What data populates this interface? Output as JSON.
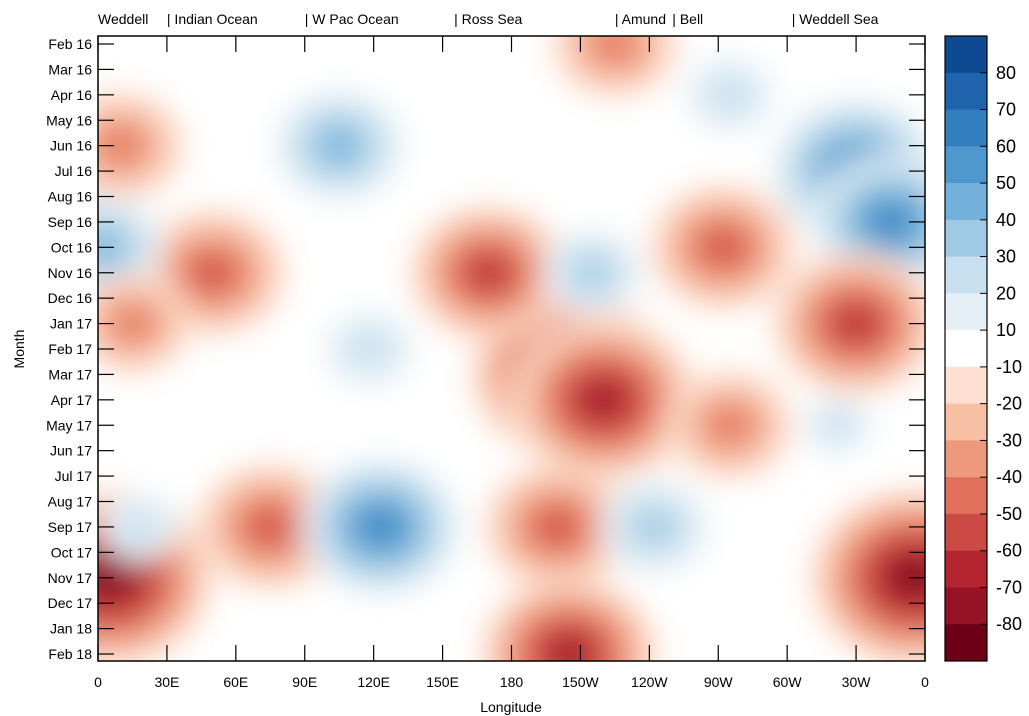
{
  "chart_data": {
    "type": "heatmap",
    "subtype": "filled-contour (Hovmoller)",
    "xlabel": "Longitude",
    "ylabel": "Month",
    "x_ticks": [
      "0",
      "30E",
      "60E",
      "90E",
      "120E",
      "150E",
      "180",
      "150W",
      "120W",
      "90W",
      "60W",
      "30W",
      "0"
    ],
    "x_range_deg_east": [
      0,
      360
    ],
    "y_ticks": [
      "Feb 16",
      "Mar 16",
      "Apr 16",
      "May 16",
      "Jun 16",
      "Jul 16",
      "Aug 16",
      "Sep 16",
      "Oct 16",
      "Nov 16",
      "Dec 16",
      "Jan 17",
      "Feb 17",
      "Mar 17",
      "Apr 17",
      "May 17",
      "Jun 17",
      "Jul 17",
      "Aug 17",
      "Sep 17",
      "Oct 17",
      "Nov 17",
      "Dec 17",
      "Jan 18",
      "Feb 18"
    ],
    "sector_labels": [
      "Weddell",
      "| Indian Ocean",
      "| W Pac Ocean",
      "| Ross Sea",
      "| Amund",
      "| Bell",
      "| Weddell Sea"
    ],
    "sector_start_lon_deg_east": [
      0,
      30,
      90,
      155,
      225,
      250,
      302
    ],
    "colorbar": {
      "labels": [
        "80",
        "70",
        "60",
        "50",
        "40",
        "30",
        "20",
        "10",
        "-10",
        "-20",
        "-30",
        "-40",
        "-50",
        "-60",
        "-70",
        "-80"
      ],
      "colors": [
        "#0e4a91",
        "#1f63ad",
        "#327fc0",
        "#4f98cd",
        "#74b1da",
        "#9ecae4",
        "#c7dfee",
        "#e5f0f6",
        "#ffffff",
        "#fde0d1",
        "#f7bfa4",
        "#ef997c",
        "#e0705a",
        "#cb4a43",
        "#b52530",
        "#961326",
        "#6b0016"
      ]
    },
    "anomaly_centers": [
      {
        "lon": 50,
        "month": "Nov 16",
        "value": -55
      },
      {
        "lon": 10,
        "month": "Jun 16",
        "value": -45
      },
      {
        "lon": 2,
        "month": "Oct 16",
        "value": 40
      },
      {
        "lon": 75,
        "month": "Sep 17",
        "value": -55
      },
      {
        "lon": 5,
        "month": "Nov 17",
        "value": -85
      },
      {
        "lon": 355,
        "month": "Nov 17",
        "value": -85
      },
      {
        "lon": 105,
        "month": "Jun 16",
        "value": 45
      },
      {
        "lon": 123,
        "month": "Sep 17",
        "value": 60
      },
      {
        "lon": 118,
        "month": "Feb 17",
        "value": 25
      },
      {
        "lon": 205,
        "month": "Mar 17",
        "value": -80
      },
      {
        "lon": 220,
        "month": "Apr 17",
        "value": -75
      },
      {
        "lon": 170,
        "month": "Nov 16",
        "value": -60
      },
      {
        "lon": 200,
        "month": "Sep 17",
        "value": -55
      },
      {
        "lon": 205,
        "month": "Feb 18",
        "value": -70
      },
      {
        "lon": 225,
        "month": "Feb 16",
        "value": -45
      },
      {
        "lon": 242,
        "month": "Sep 17",
        "value": 35
      },
      {
        "lon": 215,
        "month": "Nov 16",
        "value": 30
      },
      {
        "lon": 272,
        "month": "Oct 16",
        "value": -55
      },
      {
        "lon": 275,
        "month": "May 17",
        "value": -45
      },
      {
        "lon": 330,
        "month": "Jul 16",
        "value": 65
      },
      {
        "lon": 345,
        "month": "Sep 16",
        "value": 60
      },
      {
        "lon": 275,
        "month": "Apr 16",
        "value": 25
      },
      {
        "lon": 330,
        "month": "Jan 17",
        "value": -65
      },
      {
        "lon": 15,
        "month": "Jan 17",
        "value": -40
      },
      {
        "lon": 18,
        "month": "Sep 17",
        "value": 20
      },
      {
        "lon": 322,
        "month": "May 17",
        "value": 15
      }
    ]
  }
}
